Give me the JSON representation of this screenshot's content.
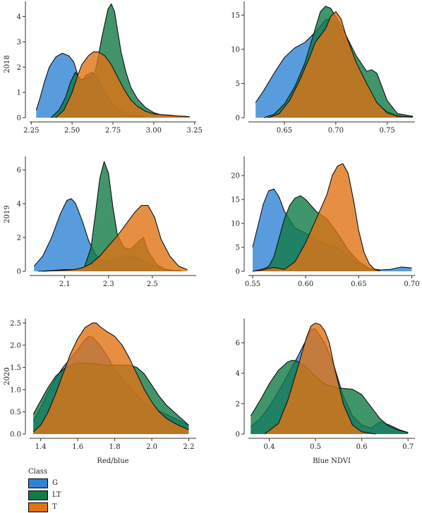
{
  "legend": {
    "title": "Class",
    "items": [
      {
        "label": "G",
        "color": "#2f83d6"
      },
      {
        "label": "LT",
        "color": "#117a45"
      },
      {
        "label": "T",
        "color": "#e07314"
      }
    ]
  },
  "chart_data": [
    {
      "type": "area",
      "row_label": "2018",
      "xlabel": "",
      "xlim": [
        2.24,
        3.26
      ],
      "ylim": [
        0,
        4.6
      ],
      "xticks": [
        {
          "v": 2.25,
          "t": "2.25"
        },
        {
          "v": 2.5,
          "t": "2.50"
        },
        {
          "v": 2.75,
          "t": "2.75"
        },
        {
          "v": 3.0,
          "t": "3.00"
        },
        {
          "v": 3.25,
          "t": "3.25"
        }
      ],
      "yticks": [
        {
          "v": 0,
          "t": "0"
        },
        {
          "v": 1,
          "t": "1"
        },
        {
          "v": 2,
          "t": "2"
        },
        {
          "v": 3,
          "t": "3"
        },
        {
          "v": 4,
          "t": "4"
        }
      ],
      "series": [
        {
          "name": "G",
          "color": "#2f83d6",
          "x": [
            2.28,
            2.3,
            2.33,
            2.36,
            2.4,
            2.44,
            2.48,
            2.51,
            2.53,
            2.55,
            2.58,
            2.62,
            2.66,
            2.7,
            2.74,
            2.78,
            2.82,
            2.86,
            2.9,
            2.94
          ],
          "y": [
            0.3,
            0.7,
            1.4,
            2.0,
            2.4,
            2.55,
            2.45,
            2.2,
            1.8,
            1.3,
            1.65,
            1.8,
            1.5,
            1.0,
            0.6,
            0.35,
            0.2,
            0.12,
            0.08,
            0.05
          ]
        },
        {
          "name": "LT",
          "color": "#117a45",
          "x": [
            2.37,
            2.42,
            2.46,
            2.49,
            2.52,
            2.54,
            2.56,
            2.58,
            2.6,
            2.62,
            2.64,
            2.66,
            2.68,
            2.7,
            2.72,
            2.74,
            2.76,
            2.78,
            2.8,
            2.83,
            2.86,
            2.9,
            2.95,
            3.0,
            3.05,
            3.1,
            3.15,
            3.2,
            3.22
          ],
          "y": [
            0.0,
            0.3,
            0.8,
            1.4,
            1.8,
            1.6,
            1.5,
            1.55,
            1.6,
            1.7,
            1.8,
            2.4,
            3.1,
            3.7,
            4.3,
            4.5,
            4.2,
            3.4,
            2.6,
            1.8,
            1.2,
            0.75,
            0.4,
            0.2,
            0.1,
            0.07,
            0.05,
            0.04,
            0.04
          ]
        },
        {
          "name": "T",
          "color": "#e07314",
          "x": [
            2.4,
            2.45,
            2.5,
            2.53,
            2.56,
            2.6,
            2.63,
            2.66,
            2.7,
            2.74,
            2.78,
            2.82,
            2.86,
            2.9,
            2.95,
            3.0,
            3.05,
            3.1,
            3.15,
            3.2,
            3.22
          ],
          "y": [
            0.0,
            0.3,
            1.0,
            1.6,
            2.1,
            2.45,
            2.6,
            2.6,
            2.45,
            2.1,
            1.6,
            1.1,
            0.7,
            0.45,
            0.25,
            0.15,
            0.12,
            0.1,
            0.07,
            0.05,
            0.04
          ]
        }
      ]
    },
    {
      "type": "area",
      "row_label": "",
      "xlabel": "",
      "xlim": [
        0.615,
        0.777
      ],
      "ylim": [
        0,
        17
      ],
      "xticks": [
        {
          "v": 0.65,
          "t": "0.65"
        },
        {
          "v": 0.7,
          "t": "0.70"
        },
        {
          "v": 0.75,
          "t": "0.75"
        }
      ],
      "yticks": [
        {
          "v": 0,
          "t": "0"
        },
        {
          "v": 5,
          "t": "5"
        },
        {
          "v": 10,
          "t": "10"
        },
        {
          "v": 15,
          "t": "15"
        }
      ],
      "series": [
        {
          "name": "G",
          "color": "#2f83d6",
          "x": [
            0.622,
            0.63,
            0.64,
            0.65,
            0.66,
            0.67,
            0.68,
            0.69,
            0.695,
            0.7,
            0.71,
            0.72,
            0.73,
            0.74,
            0.75,
            0.76,
            0.77
          ],
          "y": [
            2.2,
            4.0,
            6.5,
            8.8,
            10.2,
            11.0,
            12.5,
            14.3,
            14.5,
            14.0,
            11.0,
            7.0,
            4.0,
            2.0,
            0.9,
            0.3,
            0.1
          ]
        },
        {
          "name": "LT",
          "color": "#117a45",
          "x": [
            0.63,
            0.64,
            0.65,
            0.66,
            0.67,
            0.68,
            0.685,
            0.69,
            0.695,
            0.7,
            0.705,
            0.71,
            0.72,
            0.73,
            0.735,
            0.74,
            0.745,
            0.75,
            0.76,
            0.775
          ],
          "y": [
            0.0,
            0.5,
            2.0,
            4.5,
            8.0,
            13.0,
            15.5,
            16.3,
            16.0,
            14.8,
            13.5,
            12.0,
            9.0,
            6.8,
            7.0,
            6.5,
            4.5,
            2.5,
            0.6,
            0.2
          ]
        },
        {
          "name": "T",
          "color": "#e07314",
          "x": [
            0.635,
            0.645,
            0.655,
            0.665,
            0.675,
            0.68,
            0.685,
            0.69,
            0.695,
            0.7,
            0.705,
            0.71,
            0.72,
            0.73,
            0.74,
            0.75,
            0.76,
            0.775
          ],
          "y": [
            0.0,
            0.6,
            2.5,
            5.5,
            9.0,
            11.0,
            12.0,
            13.0,
            14.8,
            15.5,
            14.5,
            12.0,
            8.0,
            5.0,
            2.2,
            0.7,
            0.2,
            0.1
          ]
        }
      ]
    },
    {
      "type": "area",
      "row_label": "2019",
      "xlabel": "",
      "xlim": [
        1.94,
        2.7
      ],
      "ylim": [
        0,
        6.8
      ],
      "xticks": [
        {
          "v": 2.1,
          "t": "2.1"
        },
        {
          "v": 2.3,
          "t": "2.3"
        },
        {
          "v": 2.5,
          "t": "2.5"
        }
      ],
      "yticks": [
        {
          "v": 0,
          "t": "0"
        },
        {
          "v": 2,
          "t": "2"
        },
        {
          "v": 4,
          "t": "4"
        },
        {
          "v": 6,
          "t": "6"
        }
      ],
      "series": [
        {
          "name": "G",
          "color": "#2f83d6",
          "x": [
            1.96,
            2.0,
            2.04,
            2.08,
            2.11,
            2.13,
            2.15,
            2.18,
            2.21,
            2.24,
            2.27,
            2.3,
            2.34,
            2.38,
            2.42,
            2.46,
            2.5,
            2.55,
            2.6
          ],
          "y": [
            0.3,
            0.9,
            2.0,
            3.4,
            4.2,
            4.3,
            4.0,
            3.0,
            1.8,
            1.0,
            0.65,
            0.6,
            0.75,
            0.9,
            0.85,
            0.6,
            0.35,
            0.15,
            0.05
          ]
        },
        {
          "name": "LT",
          "color": "#117a45",
          "x": [
            1.98,
            2.05,
            2.1,
            2.15,
            2.19,
            2.22,
            2.24,
            2.26,
            2.28,
            2.3,
            2.32,
            2.34,
            2.37,
            2.4,
            2.44,
            2.46,
            2.48,
            2.52,
            2.56,
            2.6,
            2.63
          ],
          "y": [
            0.0,
            0.05,
            0.1,
            0.1,
            0.25,
            1.4,
            3.4,
            5.5,
            6.5,
            5.8,
            3.8,
            2.2,
            1.4,
            1.3,
            1.8,
            2.0,
            1.2,
            0.4,
            0.1,
            0.05,
            0.05
          ]
        },
        {
          "name": "T",
          "color": "#e07314",
          "x": [
            2.0,
            2.08,
            2.14,
            2.18,
            2.22,
            2.26,
            2.3,
            2.34,
            2.38,
            2.42,
            2.45,
            2.48,
            2.51,
            2.54,
            2.58,
            2.62,
            2.66
          ],
          "y": [
            0.0,
            0.05,
            0.1,
            0.2,
            0.45,
            0.9,
            1.5,
            2.1,
            2.8,
            3.5,
            3.9,
            3.9,
            3.2,
            1.9,
            0.9,
            0.3,
            0.1
          ]
        }
      ]
    },
    {
      "type": "area",
      "row_label": "",
      "xlabel": "",
      "xlim": [
        0.546,
        0.703
      ],
      "ylim": [
        0,
        24
      ],
      "xticks": [
        {
          "v": 0.55,
          "t": "0.55"
        },
        {
          "v": 0.6,
          "t": "0.60"
        },
        {
          "v": 0.65,
          "t": "0.65"
        },
        {
          "v": 0.7,
          "t": "0.70"
        }
      ],
      "yticks": [
        {
          "v": 0,
          "t": "0"
        },
        {
          "v": 5,
          "t": "5"
        },
        {
          "v": 10,
          "t": "10"
        },
        {
          "v": 15,
          "t": "15"
        },
        {
          "v": 20,
          "t": "20"
        }
      ],
      "series": [
        {
          "name": "G",
          "color": "#2f83d6",
          "x": [
            0.55,
            0.555,
            0.56,
            0.565,
            0.57,
            0.575,
            0.58,
            0.59,
            0.6,
            0.61,
            0.62,
            0.63,
            0.64,
            0.65,
            0.66,
            0.67,
            0.68,
            0.69,
            0.7
          ],
          "y": [
            5.0,
            9.5,
            14.0,
            16.8,
            17.2,
            15.5,
            12.5,
            9.0,
            8.0,
            6.5,
            5.5,
            5.0,
            3.2,
            1.5,
            0.6,
            0.3,
            0.4,
            0.9,
            0.7
          ]
        },
        {
          "name": "LT",
          "color": "#117a45",
          "x": [
            0.55,
            0.56,
            0.565,
            0.57,
            0.575,
            0.58,
            0.585,
            0.59,
            0.595,
            0.6,
            0.61,
            0.62,
            0.63,
            0.64,
            0.65,
            0.66,
            0.67
          ],
          "y": [
            0.0,
            0.5,
            1.0,
            3.0,
            7.0,
            11.0,
            13.8,
            15.3,
            15.8,
            15.0,
            12.5,
            11.0,
            8.0,
            4.5,
            2.0,
            0.6,
            0.1
          ]
        },
        {
          "name": "T",
          "color": "#e07314",
          "x": [
            0.55,
            0.56,
            0.565,
            0.57,
            0.575,
            0.58,
            0.59,
            0.6,
            0.61,
            0.62,
            0.625,
            0.63,
            0.635,
            0.64,
            0.645,
            0.65,
            0.655,
            0.66,
            0.665,
            0.67
          ],
          "y": [
            0.0,
            0.3,
            0.6,
            0.8,
            0.6,
            0.4,
            2.0,
            6.0,
            11.0,
            16.0,
            20.0,
            22.0,
            22.5,
            20.5,
            15.0,
            8.5,
            4.0,
            1.5,
            0.4,
            0.1
          ]
        }
      ]
    },
    {
      "type": "area",
      "row_label": "2020",
      "xlabel": "Red/blue",
      "xlim": [
        1.34,
        2.24
      ],
      "ylim": [
        0,
        2.6
      ],
      "xticks": [
        {
          "v": 1.4,
          "t": "1.4"
        },
        {
          "v": 1.6,
          "t": "1.6"
        },
        {
          "v": 1.8,
          "t": "1.8"
        },
        {
          "v": 2.0,
          "t": "2.0"
        },
        {
          "v": 2.2,
          "t": "2.2"
        }
      ],
      "yticks": [
        {
          "v": 0,
          "t": "0.0"
        },
        {
          "v": 0.5,
          "t": "0.5"
        },
        {
          "v": 1.0,
          "t": "1.0"
        },
        {
          "v": 1.5,
          "t": "1.5"
        },
        {
          "v": 2.0,
          "t": "2.0"
        },
        {
          "v": 2.5,
          "t": "2.5"
        }
      ],
      "series": [
        {
          "name": "G",
          "color": "#2f83d6",
          "x": [
            1.36,
            1.4,
            1.44,
            1.48,
            1.52,
            1.56,
            1.6,
            1.63,
            1.66,
            1.68,
            1.72,
            1.76,
            1.8,
            1.85,
            1.9,
            1.95,
            2.0,
            2.05,
            2.1,
            2.15,
            2.2
          ],
          "y": [
            0.3,
            0.6,
            0.95,
            1.25,
            1.5,
            1.7,
            1.9,
            2.08,
            2.2,
            2.18,
            2.0,
            1.75,
            1.45,
            1.2,
            0.95,
            0.75,
            0.6,
            0.5,
            0.4,
            0.3,
            0.2
          ]
        },
        {
          "name": "LT",
          "color": "#117a45",
          "x": [
            1.36,
            1.4,
            1.44,
            1.48,
            1.52,
            1.56,
            1.6,
            1.64,
            1.7,
            1.76,
            1.82,
            1.88,
            1.92,
            1.96,
            2.0,
            2.04,
            2.08,
            2.12,
            2.16,
            2.2
          ],
          "y": [
            0.45,
            0.75,
            1.05,
            1.3,
            1.45,
            1.55,
            1.6,
            1.6,
            1.58,
            1.55,
            1.55,
            1.55,
            1.5,
            1.35,
            1.1,
            0.85,
            0.65,
            0.5,
            0.35,
            0.2
          ]
        },
        {
          "name": "T",
          "color": "#e07314",
          "x": [
            1.36,
            1.4,
            1.44,
            1.48,
            1.52,
            1.56,
            1.6,
            1.64,
            1.68,
            1.7,
            1.72,
            1.76,
            1.8,
            1.84,
            1.88,
            1.92,
            1.96,
            2.0,
            2.04,
            2.08,
            2.12,
            2.16,
            2.2
          ],
          "y": [
            0.05,
            0.2,
            0.5,
            0.9,
            1.35,
            1.8,
            2.15,
            2.4,
            2.5,
            2.5,
            2.42,
            2.3,
            2.2,
            2.0,
            1.7,
            1.35,
            1.0,
            0.72,
            0.5,
            0.35,
            0.25,
            0.17,
            0.1
          ]
        }
      ]
    },
    {
      "type": "area",
      "row_label": "",
      "xlabel": "Blue NDVI",
      "xlim": [
        0.355,
        0.715
      ],
      "ylim": [
        0,
        7.6
      ],
      "xticks": [
        {
          "v": 0.4,
          "t": "0.4"
        },
        {
          "v": 0.5,
          "t": "0.5"
        },
        {
          "v": 0.6,
          "t": "0.6"
        },
        {
          "v": 0.7,
          "t": "0.7"
        }
      ],
      "yticks": [
        {
          "v": 0,
          "t": "0"
        },
        {
          "v": 2,
          "t": "2"
        },
        {
          "v": 4,
          "t": "4"
        },
        {
          "v": 6,
          "t": "6"
        }
      ],
      "series": [
        {
          "name": "G",
          "color": "#2f83d6",
          "x": [
            0.36,
            0.38,
            0.4,
            0.42,
            0.44,
            0.46,
            0.48,
            0.49,
            0.5,
            0.52,
            0.54,
            0.56,
            0.58,
            0.6,
            0.62,
            0.64,
            0.66,
            0.68,
            0.7
          ],
          "y": [
            0.5,
            1.0,
            1.8,
            2.8,
            3.9,
            5.0,
            6.2,
            6.9,
            6.9,
            6.0,
            4.5,
            2.5,
            1.2,
            0.6,
            0.4,
            0.8,
            0.6,
            0.3,
            0.1
          ]
        },
        {
          "name": "LT",
          "color": "#117a45",
          "x": [
            0.36,
            0.38,
            0.4,
            0.42,
            0.44,
            0.45,
            0.46,
            0.48,
            0.5,
            0.52,
            0.54,
            0.56,
            0.58,
            0.6,
            0.62,
            0.64,
            0.66,
            0.68,
            0.7
          ],
          "y": [
            1.2,
            2.2,
            3.3,
            4.2,
            4.75,
            4.85,
            4.8,
            4.4,
            3.8,
            3.3,
            3.1,
            3.0,
            2.95,
            2.6,
            1.8,
            1.0,
            0.5,
            0.25,
            0.1
          ]
        },
        {
          "name": "T",
          "color": "#e07314",
          "x": [
            0.39,
            0.42,
            0.44,
            0.46,
            0.48,
            0.49,
            0.5,
            0.51,
            0.52,
            0.53,
            0.54,
            0.56,
            0.58,
            0.6,
            0.63
          ],
          "y": [
            0.0,
            0.7,
            2.2,
            4.2,
            6.3,
            7.1,
            7.3,
            7.2,
            6.8,
            6.0,
            4.5,
            2.0,
            0.6,
            0.15,
            0.0
          ]
        }
      ]
    }
  ]
}
